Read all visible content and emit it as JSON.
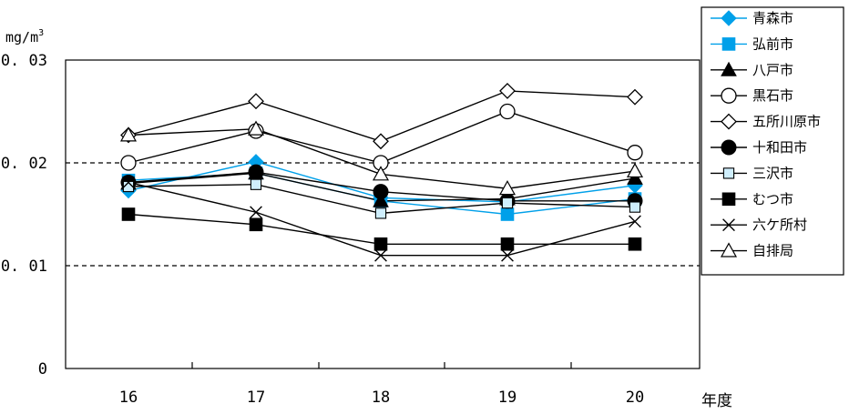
{
  "chart_data": {
    "type": "line",
    "y_unit": "mg/m",
    "y_unit_sup": "3",
    "xlabel": "年度",
    "categories": [
      "16",
      "17",
      "18",
      "19",
      "20"
    ],
    "ylim": [
      0,
      0.03
    ],
    "y_ticks": [
      {
        "value": 0,
        "label": "0"
      },
      {
        "value": 0.01,
        "label": "0. 01"
      },
      {
        "value": 0.02,
        "label": "0. 02"
      },
      {
        "value": 0.03,
        "label": "0. 03"
      }
    ],
    "dashed_reference_lines": [
      0.01,
      0.02
    ],
    "legend_position": "right",
    "series": [
      {
        "name": "青森市",
        "marker": "diamond-filled",
        "color": "#00a0e9",
        "values": [
          0.0173,
          0.0201,
          0.0166,
          0.0162,
          0.0178
        ]
      },
      {
        "name": "弘前市",
        "marker": "square-filled",
        "color": "#00a0e9",
        "values": [
          0.0183,
          0.019,
          0.0163,
          0.015,
          0.0165
        ]
      },
      {
        "name": "八戸市",
        "marker": "triangle-filled",
        "color": "#000000",
        "values": [
          0.018,
          0.019,
          0.0163,
          0.0165,
          0.0185
        ]
      },
      {
        "name": "黒石市",
        "marker": "circle-open",
        "color": "#000000",
        "values": [
          0.02,
          0.0231,
          0.02,
          0.025,
          0.021
        ]
      },
      {
        "name": "五所川原市",
        "marker": "diamond-open",
        "color": "#000000",
        "values": [
          0.0227,
          0.026,
          0.0221,
          0.027,
          0.0264
        ]
      },
      {
        "name": "十和田市",
        "marker": "circle-filled",
        "color": "#000000",
        "values": [
          0.0181,
          0.0191,
          0.0172,
          0.0163,
          0.0163
        ]
      },
      {
        "name": "三沢市",
        "marker": "square-open-light",
        "color": "#000000",
        "values": [
          0.0177,
          0.0179,
          0.0151,
          0.0161,
          0.0157
        ]
      },
      {
        "name": "むつ市",
        "marker": "square-filled",
        "color": "#000000",
        "values": [
          0.015,
          0.014,
          0.0121,
          0.0121,
          0.0121
        ]
      },
      {
        "name": "六ケ所村",
        "marker": "x",
        "color": "#000000",
        "values": [
          0.0181,
          0.0152,
          0.011,
          0.011,
          0.0143
        ]
      },
      {
        "name": "自排局",
        "marker": "triangle-open",
        "color": "#000000",
        "values": [
          0.0227,
          0.0233,
          0.0189,
          0.0175,
          0.0192
        ]
      }
    ]
  }
}
